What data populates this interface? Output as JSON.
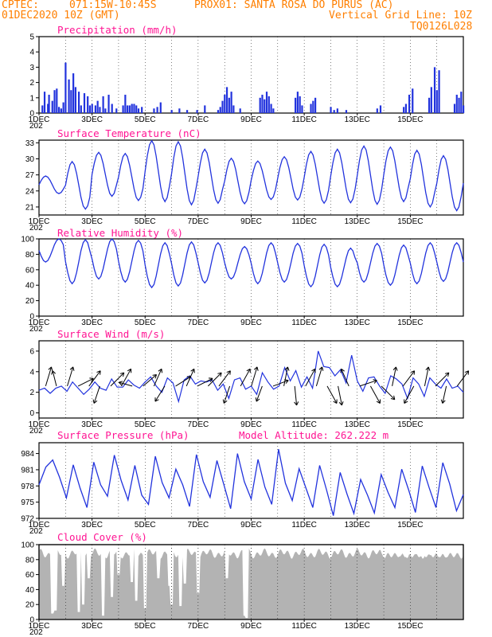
{
  "header": {
    "line1_left": "CPTEC:",
    "line1_coords": "071:15W-10:45S",
    "line1_station": "PROX01: SANTA ROSA DO PURUS (AC)",
    "line2_left": "01DEC2020 10Z (GMT)",
    "line2_right": "Vertical Grid Line: 10Z",
    "line3_right": "TQ0126L028"
  },
  "colors": {
    "header": "#ff7f00",
    "title": "#ff1493",
    "series": "#2233dd",
    "cloud": "#b3b3b3",
    "arrow": "#000000"
  },
  "x_day_labels": [
    "1DEC",
    "3DEC",
    "5DEC",
    "7DEC",
    "9DEC",
    "11DEC",
    "13DEC",
    "15DEC"
  ],
  "x_year_stub": "202",
  "chart_data": [
    {
      "type": "bar",
      "title": "Precipitation (mm/h)",
      "ylim": [
        0,
        5
      ],
      "yticks": [
        "0",
        "1",
        "2",
        "3",
        "4",
        "5"
      ],
      "x_hours_from_start": [
        3,
        5,
        8,
        9,
        12,
        14,
        16,
        18,
        20,
        22,
        24,
        27,
        29,
        31,
        33,
        36,
        38,
        41,
        44,
        46,
        48,
        51,
        53,
        55,
        58,
        60,
        63,
        66,
        70,
        76,
        78,
        80,
        82,
        84,
        86,
        88,
        90,
        93,
        104,
        107,
        110,
        120,
        127,
        134,
        143,
        150,
        162,
        164,
        166,
        168,
        170,
        172,
        174,
        176,
        182,
        200,
        202,
        204,
        206,
        208,
        210,
        212,
        232,
        234,
        236,
        238,
        246,
        248,
        250,
        264,
        267,
        270,
        278,
        306,
        309,
        330,
        332,
        335,
        338,
        353,
        355,
        358,
        360,
        362,
        376,
        378,
        380,
        382,
        384
      ],
      "values": [
        0.5,
        1.4,
        0.6,
        1.2,
        0.8,
        1.5,
        1.6,
        0.4,
        0.3,
        0.7,
        3.3,
        2.2,
        1.5,
        2.6,
        1.7,
        1.4,
        0.5,
        1.3,
        1.1,
        0.5,
        0.6,
        0.5,
        0.8,
        0.4,
        1.1,
        0.3,
        1.2,
        0.6,
        0.3,
        0.5,
        1.2,
        0.5,
        0.5,
        0.6,
        0.6,
        0.5,
        0.3,
        0.4,
        0.3,
        0.4,
        0.7,
        0.2,
        0.3,
        0.2,
        0.2,
        0.5,
        0.2,
        0.4,
        0.8,
        1.2,
        1.7,
        1.0,
        1.4,
        0.5,
        0.3,
        1.0,
        1.2,
        0.9,
        1.4,
        1.1,
        0.6,
        0.3,
        1.0,
        1.4,
        1.1,
        0.5,
        0.6,
        0.8,
        1.0,
        0.4,
        0.2,
        0.3,
        0.2,
        0.3,
        0.5,
        0.4,
        0.6,
        1.2,
        1.6,
        1.0,
        1.7,
        3.0,
        1.5,
        2.8,
        0.6,
        1.2,
        1.0,
        1.4,
        0.5
      ]
    },
    {
      "type": "line",
      "title": "Surface Temperature (nC)",
      "ylim": [
        19.5,
        33.5
      ],
      "yticks": [
        "21",
        "24",
        "27",
        "30",
        "33"
      ],
      "diurnal_max": [
        26.8,
        29.5,
        31.2,
        31.0,
        33.4,
        33.2,
        31.8,
        30.1,
        29.6,
        30.4,
        31.4,
        31.8,
        32.4,
        32.2,
        31.6,
        30.6
      ],
      "diurnal_min": [
        23.5,
        20.6,
        23.0,
        22.2,
        22.0,
        21.4,
        21.7,
        21.6,
        22.4,
        22.3,
        21.7,
        21.8,
        21.5,
        22.0,
        21.0,
        20.3
      ]
    },
    {
      "type": "line",
      "title": "Relative Humidity (%)",
      "ylim": [
        0,
        100
      ],
      "yticks": [
        "0",
        "20",
        "40",
        "60",
        "80",
        "100"
      ],
      "diurnal_max": [
        100,
        99,
        100,
        98,
        95,
        96,
        95,
        90,
        95,
        94,
        93,
        88,
        94,
        92,
        95,
        95
      ],
      "diurnal_min": [
        70,
        42,
        48,
        44,
        37,
        39,
        43,
        48,
        42,
        44,
        38,
        38,
        44,
        40,
        42,
        45
      ]
    },
    {
      "type": "line",
      "title": "Surface Wind (m/s)",
      "ylim": [
        -0.5,
        7
      ],
      "yticks": [
        "0",
        "2",
        "4",
        "6"
      ],
      "wind_speed": [
        2.2,
        2.4,
        1.9,
        2.4,
        2.6,
        2.1,
        3.0,
        2.4,
        1.8,
        2.3,
        3.0,
        2.4,
        2.2,
        3.3,
        2.5,
        2.5,
        3.2,
        2.7,
        2.4,
        3.0,
        3.5,
        2.6,
        2.0,
        3.4,
        2.9,
        1.1,
        3.2,
        3.6,
        2.8,
        3.1,
        3.0,
        3.2,
        2.2,
        2.8,
        1.4,
        3.2,
        3.4,
        2.3,
        2.6,
        1.8,
        3.9,
        3.0,
        2.3,
        2.6,
        4.4,
        3.1,
        4.1,
        2.5,
        3.5,
        2.4,
        6.0,
        4.5,
        4.4,
        3.6,
        4.2,
        2.9,
        5.6,
        3.1,
        2.1,
        3.4,
        3.5,
        2.6,
        1.9,
        3.6,
        3.3,
        2.8,
        1.4,
        3.4,
        2.8,
        1.6,
        3.4,
        2.8,
        2.4,
        3.3,
        2.4,
        2.6,
        2.0
      ]
    },
    {
      "type": "line",
      "title": "Surface Pressure (hPa)",
      "annotation": "Model Altitude: 262.222 m",
      "ylim": [
        972,
        986
      ],
      "yticks": [
        "972",
        "975",
        "978",
        "981",
        "984"
      ],
      "pressure": [
        978.2,
        981.5,
        982.8,
        979.6,
        975.8,
        981.9,
        977.6,
        974.0,
        982.4,
        978.2,
        976.1,
        983.7,
        979.0,
        975.4,
        981.8,
        976.3,
        974.6,
        983.5,
        978.6,
        975.8,
        981.1,
        978.2,
        974.2,
        983.8,
        978.8,
        975.9,
        982.7,
        978.3,
        973.8,
        984.0,
        978.8,
        975.6,
        982.9,
        977.8,
        974.6,
        984.8,
        978.5,
        975.3,
        981.2,
        977.6,
        974.0,
        981.8,
        977.3,
        972.5,
        980.5,
        976.5,
        972.9,
        979.2,
        976.3,
        973.0,
        980.1,
        976.8,
        974.0,
        981.1,
        977.3,
        973.1,
        981.7,
        977.7,
        974.0,
        982.3,
        978.4,
        973.4,
        976.4
      ]
    },
    {
      "type": "area",
      "title": "Cloud Cover (%)",
      "ylim": [
        0,
        100
      ],
      "yticks": [
        "0",
        "20",
        "40",
        "60",
        "80",
        "100"
      ]
    }
  ]
}
